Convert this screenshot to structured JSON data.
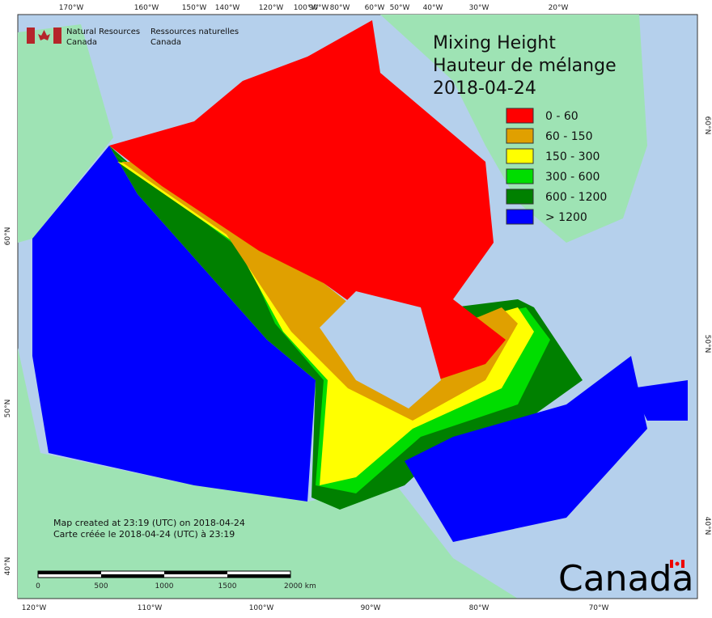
{
  "header": {
    "department_en": [
      "Natural Resources",
      "Canada"
    ],
    "department_fr": [
      "Ressources naturelles",
      "Canada"
    ]
  },
  "title": {
    "lines": [
      "Mixing Height",
      "Hauteur de mélange",
      "2018-04-24"
    ]
  },
  "legend": {
    "items": [
      {
        "label": "0 - 60",
        "color": "#ff0000"
      },
      {
        "label": "60 - 150",
        "color": "#e0a000"
      },
      {
        "label": "150 - 300",
        "color": "#ffff00"
      },
      {
        "label": "300 - 600",
        "color": "#00dd00"
      },
      {
        "label": "600 - 1200",
        "color": "#008000"
      },
      {
        "label": "> 1200",
        "color": "#0000ff"
      }
    ]
  },
  "graticule": {
    "top": [
      "170°W",
      "160°W",
      "150°W",
      "140°W",
      "120°W",
      "100°W",
      "90°W",
      "80°W",
      "60°W",
      "50°W",
      "40°W",
      "30°W",
      "20°W"
    ],
    "bottom": [
      "120°W",
      "110°W",
      "100°W",
      "90°W",
      "80°W",
      "70°W"
    ],
    "left": [
      "60°N",
      "50°N",
      "40°N"
    ],
    "right": [
      "60°N",
      "50°N",
      "40°N"
    ]
  },
  "credits": {
    "lines": [
      "Map created at 23:19 (UTC) on 2018-04-24",
      "Carte créée le 2018-04-24 (UTC) à 23:19"
    ]
  },
  "scale_bar": {
    "labels": [
      "0",
      "500",
      "1000",
      "1500",
      "2000  km"
    ]
  },
  "wordmark": "Canada"
}
